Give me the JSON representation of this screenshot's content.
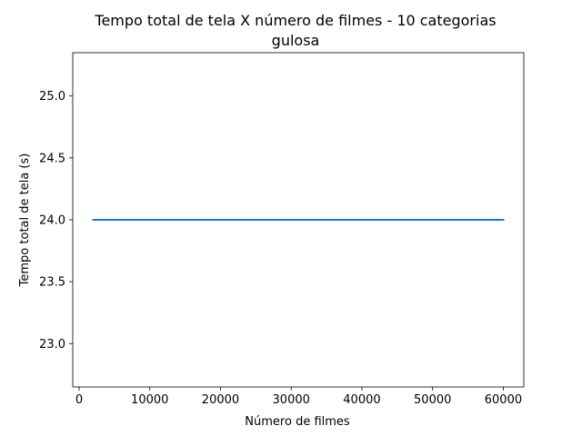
{
  "chart_data": {
    "type": "line",
    "title": "Tempo total de tela X número de filmes - 10 categorias",
    "subtitle": "gulosa",
    "xlabel": "Número de filmes",
    "ylabel": "Tempo total de tela (s)",
    "xlim": [
      -900,
      62900
    ],
    "ylim": [
      22.65,
      25.35
    ],
    "xticks": [
      0,
      10000,
      20000,
      30000,
      40000,
      50000,
      60000
    ],
    "xtick_labels": [
      "0",
      "10000",
      "20000",
      "30000",
      "40000",
      "50000",
      "60000"
    ],
    "yticks": [
      23.0,
      23.5,
      24.0,
      24.5,
      25.0
    ],
    "ytick_labels": [
      "23.0",
      "23.5",
      "24.0",
      "24.5",
      "25.0"
    ],
    "grid": false,
    "series": [
      {
        "color": "#1f77b4",
        "x": [
          2000,
          60000
        ],
        "y": [
          24.0,
          24.0
        ]
      }
    ]
  }
}
